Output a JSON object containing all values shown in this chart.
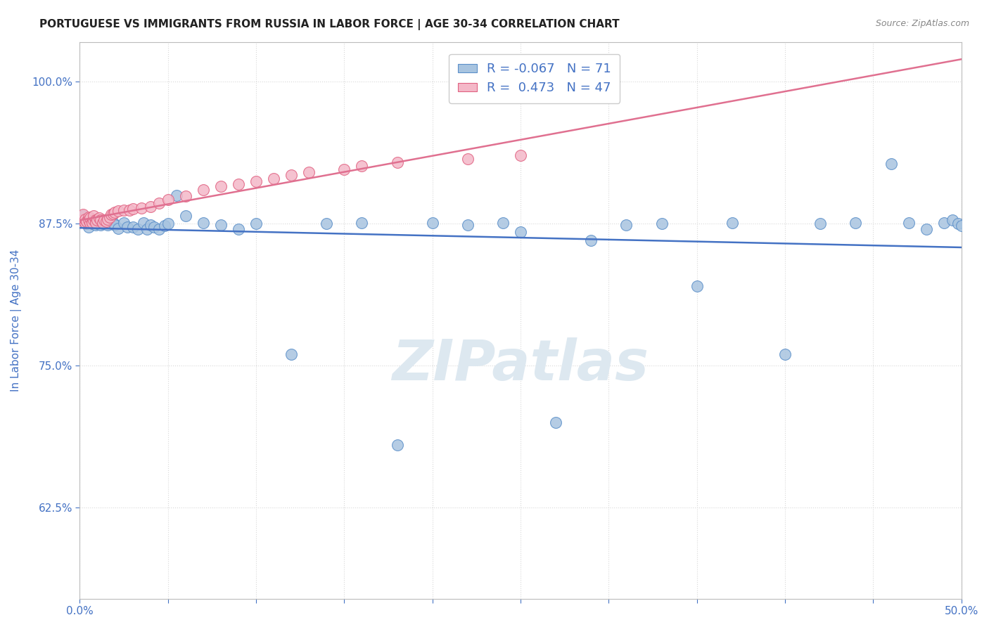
{
  "title": "PORTUGUESE VS IMMIGRANTS FROM RUSSIA IN LABOR FORCE | AGE 30-34 CORRELATION CHART",
  "source": "Source: ZipAtlas.com",
  "ylabel": "In Labor Force | Age 30-34",
  "xlabel": "",
  "xlim": [
    0.0,
    0.5
  ],
  "ylim": [
    0.545,
    1.035
  ],
  "yticks": [
    0.625,
    0.75,
    0.875,
    1.0
  ],
  "ytick_labels": [
    "62.5%",
    "75.0%",
    "87.5%",
    "100.0%"
  ],
  "xticks": [
    0.0,
    0.05,
    0.1,
    0.15,
    0.2,
    0.25,
    0.3,
    0.35,
    0.4,
    0.45,
    0.5
  ],
  "xtick_labels": [
    "0.0%",
    "",
    "",
    "",
    "",
    "",
    "",
    "",
    "",
    "",
    "50.0%"
  ],
  "blue_color": "#a8c4e0",
  "blue_edge_color": "#5b8fc9",
  "pink_color": "#f4b8c8",
  "pink_edge_color": "#e06080",
  "blue_line_color": "#4472c4",
  "pink_line_color": "#e07090",
  "R_blue": -0.067,
  "N_blue": 71,
  "R_pink": 0.473,
  "N_pink": 47,
  "blue_scatter_x": [
    0.001,
    0.002,
    0.003,
    0.003,
    0.004,
    0.004,
    0.005,
    0.005,
    0.005,
    0.006,
    0.006,
    0.007,
    0.007,
    0.008,
    0.008,
    0.009,
    0.009,
    0.01,
    0.01,
    0.011,
    0.012,
    0.013,
    0.014,
    0.015,
    0.016,
    0.017,
    0.018,
    0.019,
    0.02,
    0.022,
    0.025,
    0.027,
    0.03,
    0.033,
    0.036,
    0.038,
    0.04,
    0.042,
    0.045,
    0.048,
    0.05,
    0.055,
    0.06,
    0.07,
    0.08,
    0.09,
    0.1,
    0.12,
    0.14,
    0.16,
    0.18,
    0.2,
    0.22,
    0.24,
    0.25,
    0.27,
    0.29,
    0.31,
    0.33,
    0.35,
    0.37,
    0.4,
    0.42,
    0.44,
    0.46,
    0.47,
    0.48,
    0.49,
    0.495,
    0.498,
    0.5
  ],
  "blue_scatter_y": [
    0.88,
    0.882,
    0.876,
    0.878,
    0.875,
    0.879,
    0.876,
    0.878,
    0.872,
    0.877,
    0.879,
    0.875,
    0.878,
    0.876,
    0.878,
    0.874,
    0.878,
    0.876,
    0.875,
    0.875,
    0.874,
    0.875,
    0.876,
    0.877,
    0.874,
    0.876,
    0.88,
    0.876,
    0.874,
    0.871,
    0.876,
    0.872,
    0.872,
    0.87,
    0.876,
    0.87,
    0.874,
    0.872,
    0.87,
    0.873,
    0.875,
    0.9,
    0.882,
    0.876,
    0.874,
    0.87,
    0.875,
    0.76,
    0.875,
    0.876,
    0.68,
    0.876,
    0.874,
    0.876,
    0.868,
    0.7,
    0.86,
    0.874,
    0.875,
    0.82,
    0.876,
    0.76,
    0.875,
    0.876,
    0.928,
    0.876,
    0.87,
    0.876,
    0.878,
    0.875,
    0.873
  ],
  "pink_scatter_x": [
    0.001,
    0.002,
    0.003,
    0.003,
    0.004,
    0.005,
    0.005,
    0.006,
    0.006,
    0.007,
    0.007,
    0.008,
    0.008,
    0.009,
    0.009,
    0.01,
    0.011,
    0.012,
    0.013,
    0.014,
    0.015,
    0.016,
    0.017,
    0.018,
    0.019,
    0.02,
    0.022,
    0.025,
    0.028,
    0.03,
    0.035,
    0.04,
    0.045,
    0.05,
    0.06,
    0.07,
    0.08,
    0.09,
    0.1,
    0.11,
    0.12,
    0.13,
    0.15,
    0.16,
    0.18,
    0.22,
    0.25
  ],
  "pink_scatter_y": [
    0.878,
    0.883,
    0.876,
    0.879,
    0.877,
    0.881,
    0.878,
    0.876,
    0.88,
    0.877,
    0.876,
    0.878,
    0.882,
    0.878,
    0.876,
    0.878,
    0.88,
    0.878,
    0.876,
    0.878,
    0.877,
    0.879,
    0.881,
    0.883,
    0.884,
    0.885,
    0.886,
    0.887,
    0.887,
    0.888,
    0.889,
    0.89,
    0.893,
    0.896,
    0.899,
    0.905,
    0.908,
    0.91,
    0.912,
    0.915,
    0.918,
    0.92,
    0.923,
    0.926,
    0.929,
    0.932,
    0.935
  ],
  "background_color": "#ffffff",
  "grid_color": "#d8d8d8",
  "watermark_color": "#dde8f0",
  "title_fontsize": 11,
  "tick_color": "#4472c4"
}
